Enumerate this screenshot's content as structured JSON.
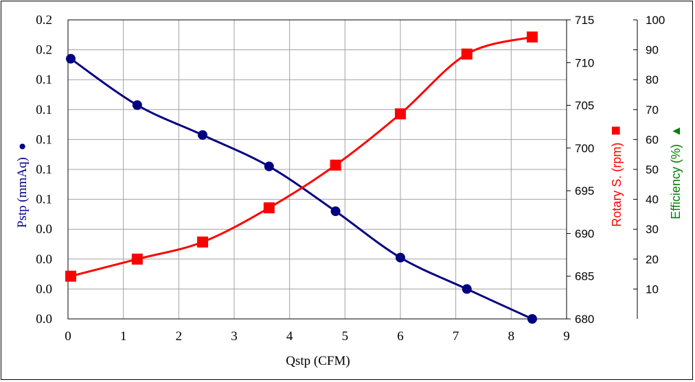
{
  "chart_data": {
    "type": "line",
    "xlabel": "Qstp (CFM)",
    "x_ticks": [
      "0",
      "1",
      "2",
      "3",
      "4",
      "5",
      "6",
      "7",
      "8",
      "9"
    ],
    "xlim": [
      0,
      9
    ],
    "grid": true,
    "axes": {
      "left": {
        "label": "Pstp (mmAq)",
        "marker": "●",
        "color": "#000080",
        "tick_labels": [
          "0.0",
          "0.0",
          "0.0",
          "0.0",
          "0.1",
          "0.1",
          "0.1",
          "0.1",
          "0.1",
          "0.2",
          "0.2"
        ]
      },
      "right1": {
        "label": "Rotary S. (rpm)",
        "marker": "■",
        "color": "#ff0000",
        "ylim": [
          680,
          715
        ],
        "tick_labels": [
          "680",
          "685",
          "690",
          "695",
          "700",
          "705",
          "710",
          "715"
        ]
      },
      "right2": {
        "label": "Efficiency (%)",
        "marker": "▲",
        "color": "#008000",
        "ylim": [
          0,
          100
        ],
        "tick_labels": [
          "10",
          "20",
          "30",
          "40",
          "50",
          "60",
          "70",
          "80",
          "90",
          "100"
        ]
      }
    },
    "series": [
      {
        "name": "Pstp",
        "axis": "left",
        "color": "#000080",
        "marker": "circle",
        "x": [
          0.05,
          1.25,
          2.43,
          3.63,
          4.83,
          6.0,
          7.2,
          8.38
        ],
        "y": [
          0.174,
          0.143,
          0.123,
          0.102,
          0.072,
          0.041,
          0.02,
          0.0
        ]
      },
      {
        "name": "Rotary S.",
        "axis": "right1",
        "color": "#ff0000",
        "marker": "square",
        "x": [
          0.05,
          1.25,
          2.43,
          3.63,
          4.83,
          6.0,
          7.2,
          8.38
        ],
        "y": [
          685,
          687,
          689,
          693,
          698,
          704,
          711,
          713
        ]
      }
    ]
  }
}
